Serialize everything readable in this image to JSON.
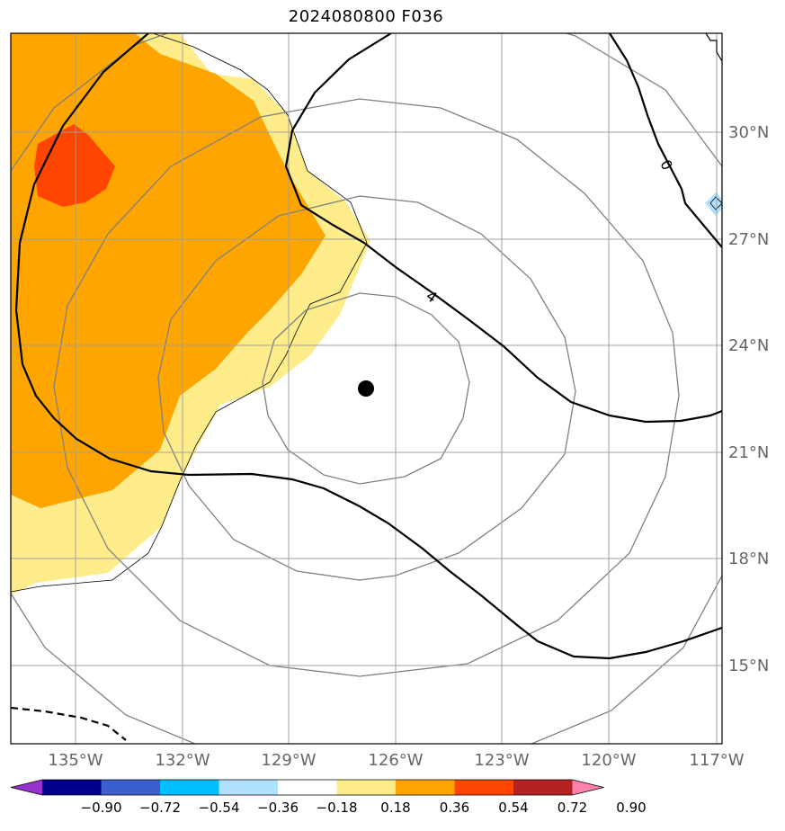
{
  "title": "2024080800 F036",
  "map": {
    "lon_range": [
      -137.2,
      -117.2
    ],
    "lat_range": [
      12.7,
      32.7
    ],
    "lon_ticks": [
      -135,
      -132,
      -129,
      -126,
      -123,
      -120,
      -117
    ],
    "lat_ticks": [
      15,
      18,
      21,
      24,
      27,
      30
    ],
    "lon_tick_labels": [
      "135°W",
      "132°W",
      "129°W",
      "126°W",
      "123°W",
      "120°W",
      "117°W"
    ],
    "lat_tick_labels": [
      "15°N",
      "18°N",
      "21°N",
      "24°N",
      "27°N",
      "30°N"
    ],
    "grid": true,
    "center_marker": {
      "lon": -126.9,
      "lat": 22.8
    }
  },
  "contour_labels": [
    "4",
    "0"
  ],
  "colorbar": {
    "levels": [
      "−0.90",
      "−0.72",
      "−0.54",
      "−0.36",
      "−0.18",
      "0.18",
      "0.36",
      "0.54",
      "0.72",
      "0.90"
    ],
    "colors": [
      "#9932CC",
      "#00008B",
      "#3A5FCD",
      "#00BFFF",
      "#B0E2FF",
      "#FFFFFF",
      "#FFEC8B",
      "#FFA500",
      "#FF4500",
      "#B22222",
      "#FF82AB"
    ],
    "extend": "both"
  }
}
